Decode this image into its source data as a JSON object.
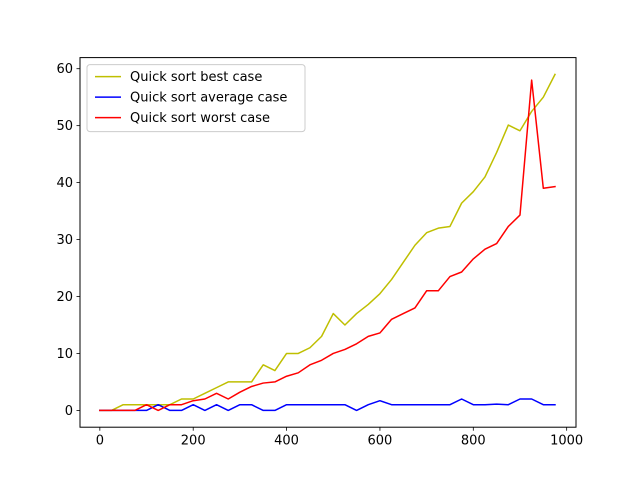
{
  "chart_data": {
    "type": "line",
    "title": "",
    "xlabel": "",
    "ylabel": "",
    "xlim": [
      -42.5,
      1020
    ],
    "ylim": [
      -2.95,
      61.95
    ],
    "xticks": [
      0,
      200,
      400,
      600,
      800,
      1000
    ],
    "yticks": [
      0,
      10,
      20,
      30,
      40,
      50,
      60
    ],
    "grid": false,
    "legend_position": "upper left",
    "x": [
      0,
      25,
      50,
      75,
      100,
      125,
      150,
      175,
      200,
      225,
      250,
      275,
      300,
      325,
      350,
      375,
      400,
      425,
      450,
      475,
      500,
      525,
      550,
      575,
      600,
      625,
      650,
      675,
      700,
      725,
      750,
      775,
      800,
      825,
      850,
      875,
      900,
      925,
      950,
      975
    ],
    "series": [
      {
        "name": "Quick sort best case",
        "color": "#bfbf00",
        "values": [
          0,
          0,
          1,
          1,
          1,
          1,
          1,
          2,
          2,
          3,
          4,
          5,
          5,
          5,
          8,
          7,
          10,
          10,
          11,
          13,
          17,
          15,
          17,
          18.6,
          20.5,
          23,
          26,
          29,
          31.2,
          32,
          32.3,
          36.4,
          38.4,
          41,
          45.3,
          50.1,
          49.1,
          52.5,
          55,
          59
        ]
      },
      {
        "name": "Quick sort average case",
        "color": "#0000ff",
        "values": [
          0,
          0,
          0,
          0,
          0,
          1,
          0,
          0,
          1,
          0,
          1,
          0,
          1,
          1,
          0,
          0,
          1,
          1,
          1,
          1,
          1,
          1,
          0,
          1,
          1.7,
          1,
          1,
          1,
          1,
          1,
          1,
          2,
          1,
          1,
          1.1,
          1,
          2,
          2,
          1,
          1
        ]
      },
      {
        "name": "Quick sort worst case",
        "color": "#ff0000",
        "values": [
          0,
          0,
          0,
          0,
          1,
          0,
          1,
          1,
          1.7,
          2,
          3,
          2,
          3.2,
          4.2,
          4.8,
          5,
          6,
          6.6,
          8,
          8.8,
          10,
          10.7,
          11.7,
          13,
          13.6,
          16,
          17,
          18,
          21,
          21,
          23.5,
          24.3,
          26.6,
          28.3,
          29.3,
          32.3,
          34.3,
          58,
          39,
          39.3
        ]
      }
    ]
  }
}
